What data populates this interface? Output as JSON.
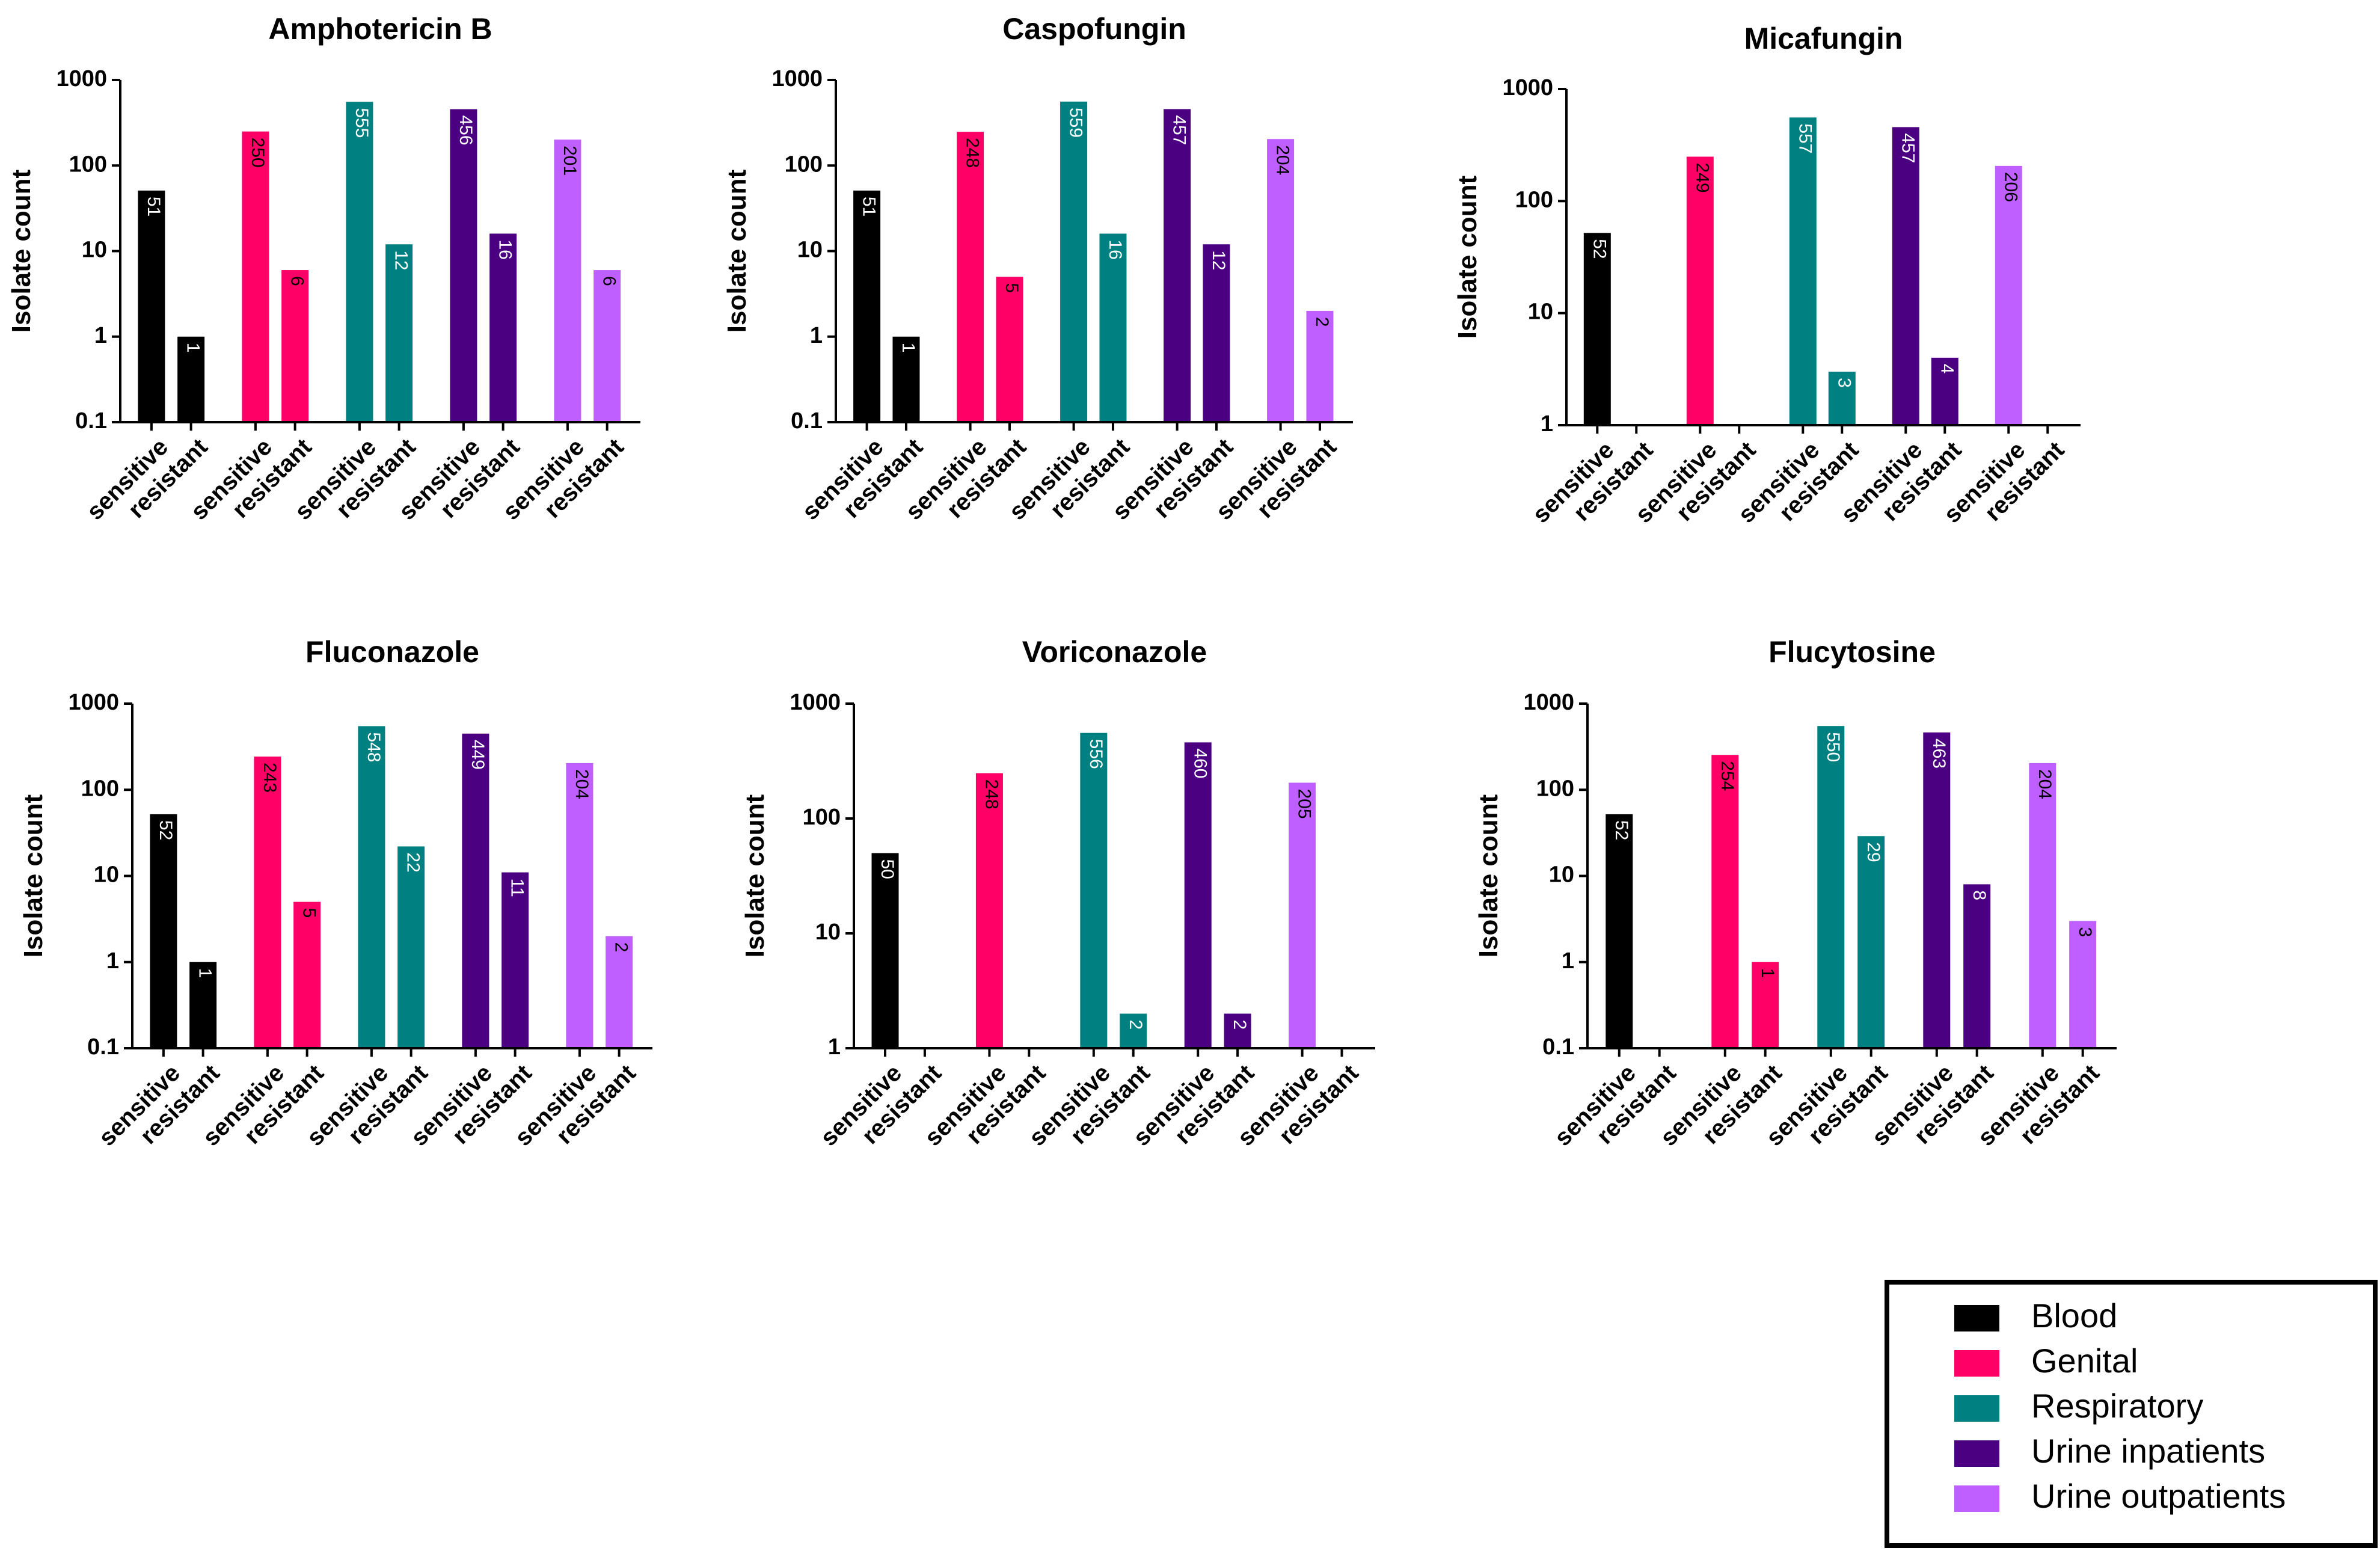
{
  "colors": {
    "Blood": "#000000",
    "Genital": "#ff0066",
    "Respiratory": "#008080",
    "Urine inpatients": "#4b0082",
    "Urine outpatients": "#bf5fff"
  },
  "legend": {
    "items": [
      "Blood",
      "Genital",
      "Respiratory",
      "Urine inpatients",
      "Urine outpatients"
    ]
  },
  "chart_data": [
    {
      "type": "bar",
      "title": "Amphotericin B",
      "ylabel": "Isolate count",
      "yscale": "log",
      "ylim": [
        0.1,
        1000
      ],
      "ytick_labels": [
        "0.1",
        "1",
        "10",
        "100",
        "1000"
      ],
      "categories": [
        "sensitive",
        "resistant"
      ],
      "series": [
        {
          "name": "Blood",
          "values": [
            51,
            1
          ]
        },
        {
          "name": "Genital",
          "values": [
            250,
            6
          ]
        },
        {
          "name": "Respiratory",
          "values": [
            555,
            12
          ]
        },
        {
          "name": "Urine inpatients",
          "values": [
            456,
            16
          ]
        },
        {
          "name": "Urine outpatients",
          "values": [
            201,
            6
          ]
        }
      ]
    },
    {
      "type": "bar",
      "title": "Caspofungin",
      "ylabel": "Isolate count",
      "yscale": "log",
      "ylim": [
        0.1,
        1000
      ],
      "ytick_labels": [
        "0.1",
        "1",
        "10",
        "100",
        "1000"
      ],
      "categories": [
        "sensitive",
        "resistant"
      ],
      "series": [
        {
          "name": "Blood",
          "values": [
            51,
            1
          ]
        },
        {
          "name": "Genital",
          "values": [
            248,
            5
          ]
        },
        {
          "name": "Respiratory",
          "values": [
            559,
            16
          ]
        },
        {
          "name": "Urine inpatients",
          "values": [
            457,
            12
          ]
        },
        {
          "name": "Urine outpatients",
          "values": [
            204,
            2
          ]
        }
      ]
    },
    {
      "type": "bar",
      "title": "Micafungin",
      "ylabel": "Isolate count",
      "yscale": "log",
      "ylim": [
        1,
        1000
      ],
      "ytick_labels": [
        "1",
        "10",
        "100",
        "1000"
      ],
      "categories": [
        "sensitive",
        "resistant"
      ],
      "series": [
        {
          "name": "Blood",
          "values": [
            52,
            null
          ]
        },
        {
          "name": "Genital",
          "values": [
            249,
            null
          ]
        },
        {
          "name": "Respiratory",
          "values": [
            557,
            3
          ]
        },
        {
          "name": "Urine inpatients",
          "values": [
            457,
            4
          ]
        },
        {
          "name": "Urine outpatients",
          "values": [
            206,
            null
          ]
        }
      ]
    },
    {
      "type": "bar",
      "title": "Fluconazole",
      "ylabel": "Isolate count",
      "yscale": "log",
      "ylim": [
        0.1,
        1000
      ],
      "ytick_labels": [
        "0.1",
        "1",
        "10",
        "100",
        "1000"
      ],
      "categories": [
        "sensitive",
        "resistant"
      ],
      "series": [
        {
          "name": "Blood",
          "values": [
            52,
            1
          ]
        },
        {
          "name": "Genital",
          "values": [
            243,
            5
          ]
        },
        {
          "name": "Respiratory",
          "values": [
            548,
            22
          ]
        },
        {
          "name": "Urine inpatients",
          "values": [
            449,
            11
          ]
        },
        {
          "name": "Urine outpatients",
          "values": [
            204,
            2
          ]
        }
      ]
    },
    {
      "type": "bar",
      "title": "Voriconazole",
      "ylabel": "Isolate count",
      "yscale": "log",
      "ylim": [
        1,
        1000
      ],
      "ytick_labels": [
        "1",
        "10",
        "100",
        "1000"
      ],
      "categories": [
        "sensitive",
        "resistant"
      ],
      "series": [
        {
          "name": "Blood",
          "values": [
            50,
            null
          ]
        },
        {
          "name": "Genital",
          "values": [
            248,
            null
          ]
        },
        {
          "name": "Respiratory",
          "values": [
            556,
            2
          ]
        },
        {
          "name": "Urine inpatients",
          "values": [
            460,
            2
          ]
        },
        {
          "name": "Urine outpatients",
          "values": [
            205,
            null
          ]
        }
      ]
    },
    {
      "type": "bar",
      "title": "Flucytosine",
      "ylabel": "Isolate count",
      "yscale": "log",
      "ylim": [
        0.1,
        1000
      ],
      "ytick_labels": [
        "0.1",
        "1",
        "10",
        "100",
        "1000"
      ],
      "categories": [
        "sensitive",
        "resistant"
      ],
      "series": [
        {
          "name": "Blood",
          "values": [
            52,
            null
          ]
        },
        {
          "name": "Genital",
          "values": [
            254,
            1
          ]
        },
        {
          "name": "Respiratory",
          "values": [
            550,
            29
          ]
        },
        {
          "name": "Urine inpatients",
          "values": [
            463,
            8
          ]
        },
        {
          "name": "Urine outpatients",
          "values": [
            204,
            3
          ]
        }
      ]
    }
  ]
}
